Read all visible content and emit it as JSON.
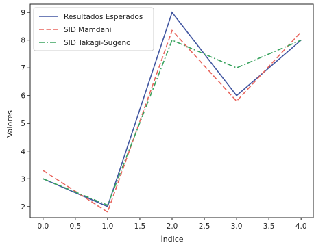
{
  "chart_data": {
    "type": "line",
    "x": [
      0,
      1,
      2,
      3,
      4
    ],
    "series": [
      {
        "name": "Resultados Esperados",
        "values": [
          3,
          2,
          9,
          6,
          8
        ],
        "color": "#4055a0",
        "style": "solid"
      },
      {
        "name": "SID Mamdani",
        "values": [
          3.3,
          1.8,
          8.35,
          5.8,
          8.3
        ],
        "color": "#e8635b",
        "style": "dashed"
      },
      {
        "name": "SID Takagi-Sugeno",
        "values": [
          3,
          2.05,
          8,
          7,
          8
        ],
        "color": "#3aa35f",
        "style": "dashdot"
      }
    ],
    "xlabel": "Índice",
    "ylabel": "Valores",
    "xticks": [
      "0.0",
      "0.5",
      "1.0",
      "1.5",
      "2.0",
      "2.5",
      "3.0",
      "3.5",
      "4.0"
    ],
    "yticks": [
      "2",
      "3",
      "4",
      "5",
      "6",
      "7",
      "8",
      "9"
    ],
    "xlim": [
      -0.2,
      4.2
    ],
    "ylim": [
      1.6,
      9.3
    ],
    "grid": false,
    "legend_position": "top-left"
  }
}
